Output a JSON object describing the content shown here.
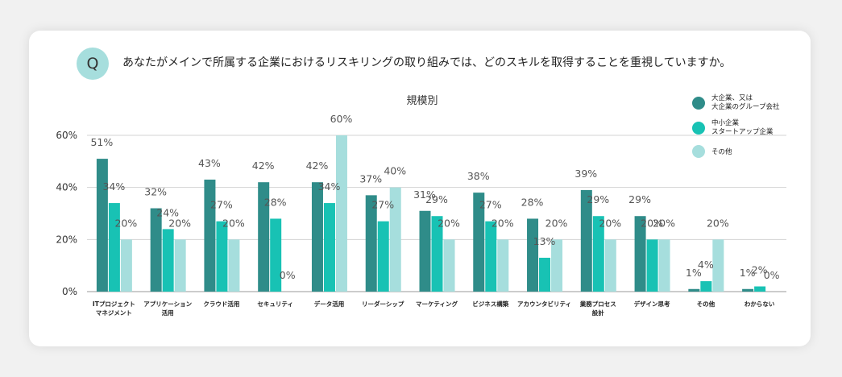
{
  "question": {
    "badge": "Q",
    "text": "あなたがメインで所属する企業におけるリスキリングの取り組みでは、どのスキルを取得することを重視していますか。"
  },
  "colors": {
    "large": "#2f8c89",
    "small": "#18c2b4",
    "other": "#a6dedd"
  },
  "chart_data": {
    "type": "bar",
    "title": "規模別",
    "ylim": [
      0,
      60
    ],
    "yticks": [
      "0%",
      "20%",
      "40%",
      "60%"
    ],
    "grid": true,
    "legend_position": "top-right",
    "categories": [
      [
        "ITプロジェクト",
        "マネジメント"
      ],
      [
        "アプリケーション",
        "活用"
      ],
      [
        "クラウド活用"
      ],
      [
        "セキュリティ"
      ],
      [
        "データ活用"
      ],
      [
        "リーダーシップ"
      ],
      [
        "マーケティング"
      ],
      [
        "ビジネス構築"
      ],
      [
        "アカウンタビリティ"
      ],
      [
        "業務プロセス",
        "設計"
      ],
      [
        "デザイン思考"
      ],
      [
        "その他"
      ],
      [
        "わからない"
      ]
    ],
    "series": [
      {
        "name": [
          "大企業、又は",
          "大企業のグループ会社"
        ],
        "color": "#2f8c89",
        "values": [
          51,
          32,
          43,
          42,
          42,
          37,
          31,
          38,
          28,
          39,
          29,
          1,
          1
        ],
        "labels": [
          "51%",
          "32%",
          "43%",
          "42%",
          "42%",
          "37%",
          "31%",
          "38%",
          "28%",
          "39%",
          "29%",
          "1%",
          "1%"
        ]
      },
      {
        "name": [
          "中小企業",
          "スタートアップ企業"
        ],
        "color": "#18c2b4",
        "values": [
          34,
          24,
          27,
          28,
          34,
          27,
          29,
          27,
          13,
          29,
          20,
          4,
          2
        ],
        "labels": [
          "34%",
          "24%",
          "27%",
          "28%",
          "34%",
          "27%",
          "29%",
          "27%",
          "13%",
          "29%",
          "20%",
          "4%",
          "2%"
        ]
      },
      {
        "name": [
          "その他"
        ],
        "color": "#a6dedd",
        "values": [
          20,
          20,
          20,
          0,
          60,
          40,
          20,
          20,
          20,
          20,
          20,
          20,
          0
        ],
        "labels": [
          "20%",
          "20%",
          "20%",
          "0%",
          "60%",
          "40%",
          "20%",
          "20%",
          "20%",
          "20%",
          "20%",
          "20%",
          "0%"
        ]
      }
    ]
  }
}
